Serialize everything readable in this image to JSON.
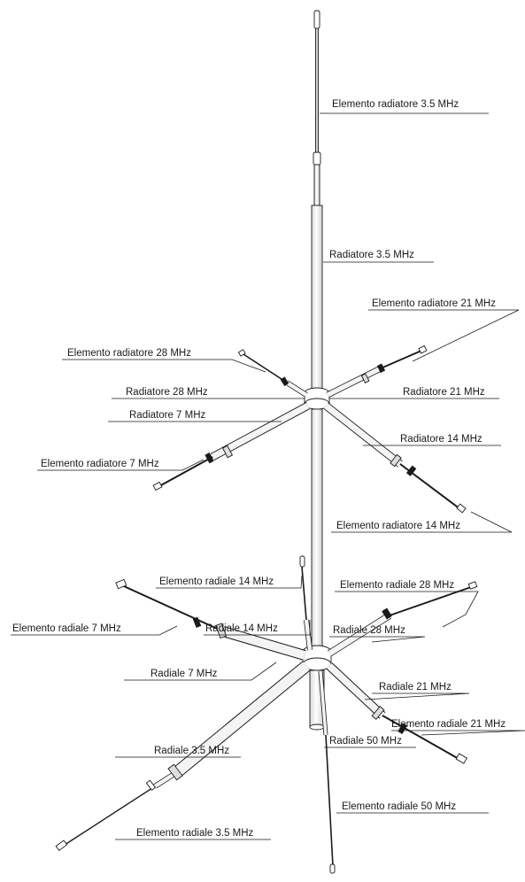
{
  "labels": {
    "elem_rad_35": "Elemento radiatore 3.5 MHz",
    "rad_35": "Radiatore 3.5 MHz",
    "elem_rad_21": "Elemento radiatore 21 MHz",
    "elem_rad_28": "Elemento radiatore 28 MHz",
    "rad_28": "Radiatore 28 MHz",
    "rad_21": "Radiatore 21 MHz",
    "rad_7": "Radiatore 7 MHz",
    "rad_14": "Radiatore 14 MHz",
    "elem_rad_7": "Elemento radiatore 7 MHz",
    "elem_rad_14": "Elemento radiatore 14 MHz",
    "elem_radiale_14": "Elemento radiale 14 MHz",
    "elem_radiale_28": "Elemento radiale 28 MHz",
    "elem_radiale_7": "Elemento radiale 7 MHz",
    "radiale_14": "Radiale 14 MHz",
    "radiale_28": "Radiale 28 MHz",
    "radiale_7": "Radiale 7 MHz",
    "radiale_21": "Radiale 21 MHz",
    "elem_radiale_21": "Elemento radiale 21 MHz",
    "radiale_35": "Radiale 3.5 MHz",
    "radiale_50": "Radiale 50 MHz",
    "elem_radiale_50": "Elemento radiale 50 MHz",
    "elem_radiale_35": "Elemento radiale 3.5 MHz"
  },
  "colors": {
    "line": "#1a1a1a",
    "tube_fill": "#f4f4f4",
    "background": "#ffffff"
  }
}
